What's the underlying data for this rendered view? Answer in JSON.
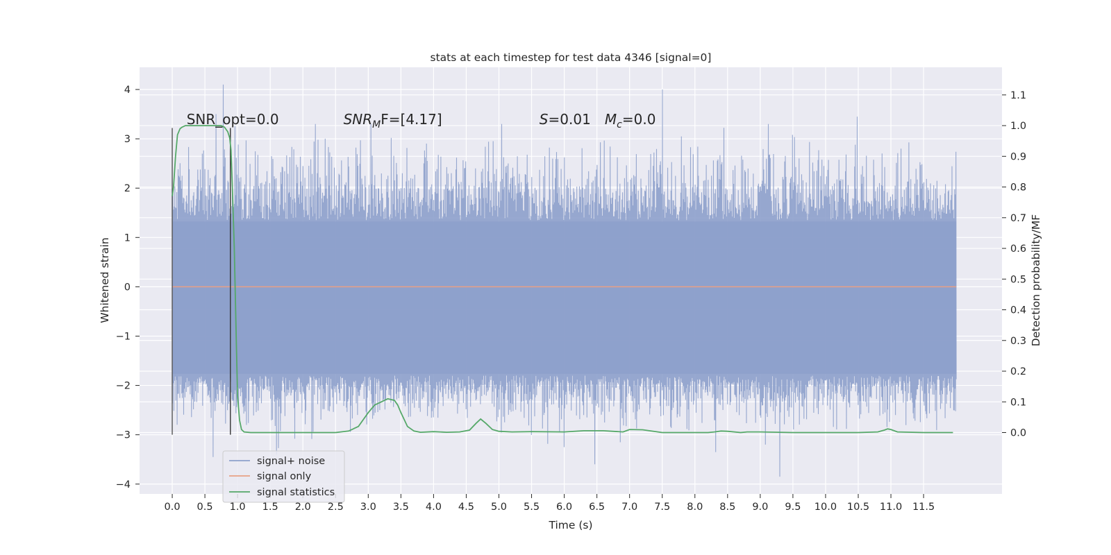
{
  "chart_data": {
    "type": "line",
    "title": "stats at each timestep for test data 4346 [signal=0]",
    "xlabel": "Time (s)",
    "ylabel_left": "Whitened strain",
    "ylabel_right": "Detection probability/MF",
    "xlim": [
      -0.5,
      12.7
    ],
    "ylim_left": [
      -4.2,
      4.45
    ],
    "ylim_right": [
      -0.2,
      1.19
    ],
    "x_ticks": [
      "0.0",
      "0.5",
      "1.0",
      "1.5",
      "2.0",
      "2.5",
      "3.0",
      "3.5",
      "4.0",
      "4.5",
      "5.0",
      "5.5",
      "6.0",
      "6.5",
      "7.0",
      "7.5",
      "8.0",
      "8.5",
      "9.0",
      "9.5",
      "10.0",
      "10.5",
      "11.0",
      "11.5"
    ],
    "y_ticks_left": [
      "4",
      "3",
      "2",
      "1",
      "0",
      "−1",
      "−2",
      "−3",
      "−4"
    ],
    "y_ticks_right": [
      "1.1",
      "1.0",
      "0.9",
      "0.8",
      "0.7",
      "0.6",
      "0.5",
      "0.4",
      "0.3",
      "0.2",
      "0.1",
      "0.0"
    ],
    "grid": true,
    "legend_position": "lower-left",
    "annotations": [
      {
        "id": "snr_opt",
        "text": "SNR_opt=0.0",
        "x": 0.22,
        "y": 3.3
      },
      {
        "id": "snr_mf",
        "parts": [
          "SNR",
          "M",
          "F=[4.17]"
        ],
        "x": 2.62,
        "y": 3.3
      },
      {
        "id": "s_val",
        "parts": [
          "S",
          "=0.01"
        ],
        "x": 5.62,
        "y": 3.3
      },
      {
        "id": "mc_val",
        "parts": [
          "M",
          "c",
          "=0.0"
        ],
        "x": 6.62,
        "y": 3.3
      }
    ],
    "vertical_markers": [
      {
        "x": 0.0,
        "y_range": [
          -3.0,
          3.22
        ],
        "color": "#555555"
      },
      {
        "x": 0.89,
        "y_range": [
          -3.0,
          3.22
        ],
        "color": "#333333"
      }
    ],
    "series": [
      {
        "name": "signal+ noise",
        "axis": "left",
        "color": "#8da0cb",
        "style": "noise",
        "x_range": [
          0.0,
          12.0
        ],
        "samples": 2400,
        "core_band": [
          -1.8,
          1.35
        ],
        "typical_extent": [
          -2.6,
          2.6
        ],
        "spikes": [
          {
            "x": 0.78,
            "y": 4.1
          },
          {
            "x": 7.5,
            "y": 4.0
          },
          {
            "x": 10.48,
            "y": 3.45
          },
          {
            "x": 0.67,
            "y": 3.5
          },
          {
            "x": 9.3,
            "y": -3.85
          },
          {
            "x": 6.47,
            "y": -3.6
          },
          {
            "x": 1.6,
            "y": -3.4
          },
          {
            "x": 0.63,
            "y": -3.45
          },
          {
            "x": 8.32,
            "y": -3.35
          },
          {
            "x": 6.0,
            "y": -3.25
          },
          {
            "x": 9.08,
            "y": -3.2
          }
        ]
      },
      {
        "name": "signal only",
        "axis": "left",
        "color": "#e8a085",
        "x": [
          0.0,
          12.0
        ],
        "y": [
          0.0,
          0.0
        ]
      },
      {
        "name": "signal statistics",
        "axis": "right",
        "color": "#55a868",
        "x": [
          0.0,
          0.02,
          0.05,
          0.08,
          0.12,
          0.15,
          0.2,
          0.3,
          0.4,
          0.5,
          0.6,
          0.7,
          0.75,
          0.8,
          0.85,
          0.88,
          0.9,
          0.92,
          0.95,
          0.98,
          1.0,
          1.03,
          1.06,
          1.1,
          1.2,
          1.5,
          2.0,
          2.5,
          2.7,
          2.85,
          3.0,
          3.1,
          3.2,
          3.3,
          3.4,
          3.45,
          3.5,
          3.6,
          3.7,
          3.8,
          4.0,
          4.2,
          4.4,
          4.55,
          4.65,
          4.72,
          4.8,
          4.9,
          5.0,
          5.2,
          5.5,
          6.0,
          6.3,
          6.6,
          6.9,
          7.0,
          7.2,
          7.5,
          8.0,
          8.2,
          8.3,
          8.4,
          8.5,
          8.7,
          8.8,
          8.9,
          9.0,
          9.5,
          10.0,
          10.5,
          10.8,
          10.9,
          10.95,
          11.0,
          11.1,
          11.5,
          11.95
        ],
        "y": [
          0.77,
          0.8,
          0.9,
          0.97,
          0.99,
          0.995,
          1.0,
          1.0,
          1.0,
          1.0,
          1.0,
          1.0,
          1.0,
          0.995,
          0.98,
          0.96,
          0.92,
          0.8,
          0.6,
          0.3,
          0.12,
          0.04,
          0.01,
          0.002,
          0.0,
          0.0,
          0.0,
          0.0,
          0.005,
          0.02,
          0.065,
          0.09,
          0.1,
          0.11,
          0.105,
          0.09,
          0.065,
          0.02,
          0.005,
          0.001,
          0.003,
          0.001,
          0.002,
          0.008,
          0.03,
          0.044,
          0.03,
          0.01,
          0.004,
          0.002,
          0.003,
          0.002,
          0.006,
          0.006,
          0.002,
          0.01,
          0.009,
          0.0,
          0.0,
          0.0,
          0.002,
          0.005,
          0.004,
          0.0,
          0.002,
          0.002,
          0.002,
          0.0,
          0.0,
          0.0,
          0.002,
          0.008,
          0.012,
          0.01,
          0.002,
          0.0,
          0.0
        ]
      }
    ]
  }
}
